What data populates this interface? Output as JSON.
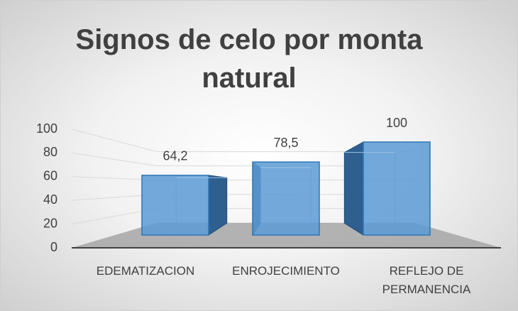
{
  "chart_data": {
    "type": "bar3d",
    "title": "Signos de celo por monta natural",
    "categories": [
      "EDEMATIZACION",
      "ENROJECIMIENTO",
      "REFLEJO DE PERMANENCIA"
    ],
    "values": [
      64.2,
      78.5,
      100
    ],
    "value_labels": [
      "64,2",
      "78,5",
      "100"
    ],
    "color": "#5b9bd5",
    "ylim": [
      0,
      100
    ],
    "yticks": [
      0,
      20,
      40,
      60,
      80,
      100
    ],
    "grid": true
  }
}
